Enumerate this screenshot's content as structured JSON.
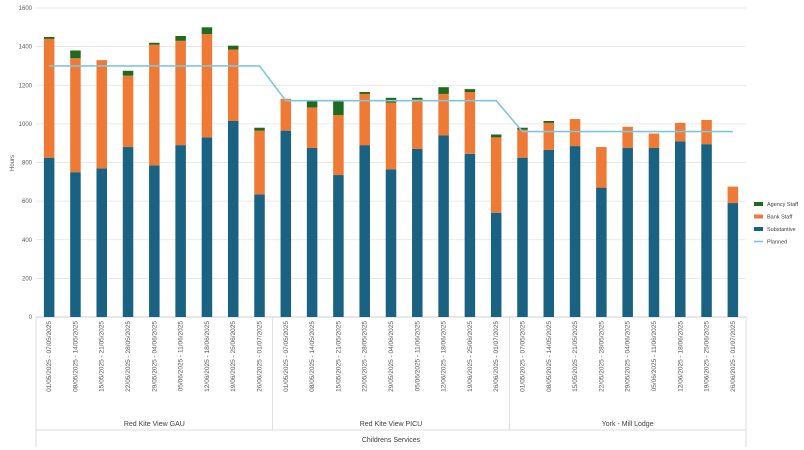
{
  "chart_data": {
    "type": "bar",
    "stacked": true,
    "ylabel": "Hours",
    "ylim": [
      0,
      1600
    ],
    "yticks": [
      0,
      200,
      400,
      600,
      800,
      1000,
      1200,
      1400,
      1600
    ],
    "grid": true,
    "legend_position": "right",
    "categories": [
      "01/05/2025 - 07/05/2025",
      "08/05/2025 - 14/05/2025",
      "15/05/2025 - 21/05/2025",
      "22/05/2025 - 28/05/2025",
      "29/05/2025 - 04/06/2025",
      "05/06/2025 - 11/06/2025",
      "12/06/2025 - 18/06/2025",
      "19/06/2025 - 25/06/2025",
      "26/06/2025 - 01/07/2025",
      "01/05/2025 - 07/05/2025",
      "08/05/2025 - 14/05/2025",
      "15/05/2025 - 21/05/2025",
      "22/05/2025 - 28/05/2025",
      "29/05/2025 - 04/06/2025",
      "05/06/2025 - 11/06/2025",
      "12/06/2025 - 18/06/2025",
      "19/06/2025 - 25/06/2025",
      "26/06/2025 - 01/07/2025",
      "01/05/2025 - 07/05/2025",
      "08/05/2025 - 14/05/2025",
      "15/05/2025 - 21/05/2025",
      "22/05/2025 - 28/05/2025",
      "29/05/2025 - 04/06/2025",
      "05/06/2025 - 11/06/2025",
      "12/06/2025 - 18/06/2025",
      "19/06/2025 - 25/06/2025",
      "26/06/2025 - 01/07/2025"
    ],
    "groups": [
      {
        "label": "Red Kite View GAU",
        "count": 9
      },
      {
        "label": "Red Kite View PICU",
        "count": 9
      },
      {
        "label": "York - Mill Lodge",
        "count": 9
      }
    ],
    "outer_group_label": "Childrens Services",
    "series": [
      {
        "name": "Substantive",
        "color": "#1a6282",
        "kind": "bar",
        "values": [
          825,
          750,
          770,
          880,
          785,
          890,
          930,
          1015,
          635,
          965,
          875,
          735,
          890,
          765,
          870,
          940,
          845,
          540,
          825,
          865,
          885,
          670,
          875,
          875,
          910,
          895,
          590
        ]
      },
      {
        "name": "Bank Staff",
        "color": "#ef7a36",
        "kind": "bar",
        "values": [
          615,
          590,
          560,
          370,
          625,
          540,
          535,
          370,
          330,
          165,
          210,
          310,
          265,
          345,
          255,
          215,
          320,
          390,
          145,
          140,
          140,
          210,
          110,
          75,
          95,
          125,
          85
        ]
      },
      {
        "name": "Agency Staff",
        "color": "#1e6b20",
        "kind": "bar",
        "values": [
          10,
          40,
          0,
          25,
          10,
          25,
          35,
          20,
          15,
          0,
          35,
          75,
          10,
          25,
          10,
          35,
          15,
          15,
          10,
          10,
          0,
          0,
          0,
          0,
          0,
          0,
          0
        ]
      },
      {
        "name": "Planned",
        "color": "#7ec6e0",
        "kind": "line",
        "values": [
          1300,
          1300,
          1300,
          1300,
          1300,
          1300,
          1300,
          1300,
          1300,
          1120,
          1120,
          1120,
          1120,
          1120,
          1120,
          1120,
          1120,
          1120,
          960,
          960,
          960,
          960,
          960,
          960,
          960,
          960,
          960
        ]
      }
    ],
    "legend_order": [
      "Agency Staff",
      "Bank Staff",
      "Substantive",
      "Planned"
    ]
  }
}
